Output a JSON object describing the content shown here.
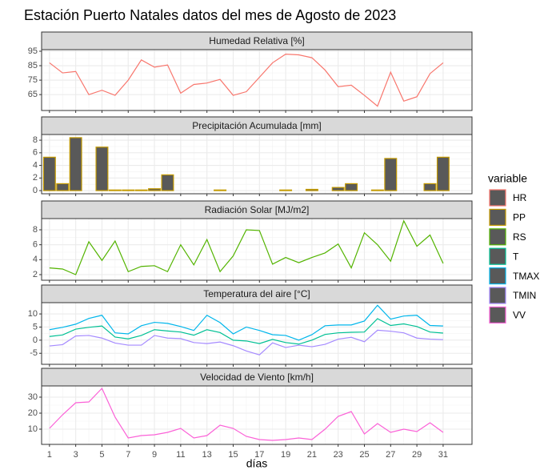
{
  "title": "Estación Puerto Natales datos del mes de Agosto de 2023",
  "x_axis": {
    "label": "días",
    "ticks": [
      1,
      3,
      5,
      7,
      9,
      11,
      13,
      15,
      17,
      19,
      21,
      23,
      25,
      27,
      29,
      31
    ],
    "xlim": [
      0.4,
      33.2
    ]
  },
  "legend": {
    "title": "variable",
    "key_fill": "#595959"
  },
  "chart_data": [
    {
      "type": "line",
      "title": "Humedad Relativa [%]",
      "ylim": [
        54,
        96.1
      ],
      "yticks": [
        95,
        85,
        75,
        65
      ],
      "x": [
        1,
        2,
        3,
        4,
        5,
        6,
        7,
        8,
        9,
        10,
        11,
        12,
        13,
        14,
        15,
        16,
        17,
        18,
        19,
        20,
        21,
        22,
        23,
        24,
        25,
        26,
        27,
        28,
        29,
        30,
        31
      ],
      "series": [
        {
          "name": "HR",
          "color": "#F8766D",
          "values": [
            87,
            80,
            81,
            65,
            68,
            64.5,
            75,
            89,
            84,
            85.5,
            66,
            72,
            73,
            75.5,
            64.5,
            67,
            77,
            87,
            93,
            92.5,
            90.5,
            82,
            70.5,
            71.5,
            64.5,
            57,
            80.5,
            60.5,
            63.5,
            79.5,
            87
          ]
        }
      ]
    },
    {
      "type": "bar",
      "title": "Precipitación Acumulada [mm]",
      "ylim": [
        -0.5,
        8.9
      ],
      "yticks": [
        8,
        6,
        4,
        2,
        0
      ],
      "x": [
        1,
        2,
        3,
        4,
        5,
        6,
        7,
        8,
        9,
        10,
        11,
        12,
        13,
        14,
        15,
        16,
        17,
        18,
        19,
        20,
        21,
        22,
        23,
        24,
        25,
        26,
        27,
        28,
        29,
        30,
        31
      ],
      "series": [
        {
          "name": "PP",
          "color": "#C49A00",
          "values": [
            5.3,
            1.1,
            8.4,
            0,
            6.9,
            0.1,
            0.1,
            0.1,
            0.3,
            2.5,
            0,
            0,
            0,
            0.1,
            0,
            0,
            0,
            0,
            0.1,
            0,
            0.2,
            0,
            0.5,
            1.1,
            0,
            0.1,
            5.1,
            0,
            0,
            1.1,
            5.3
          ]
        }
      ]
    },
    {
      "type": "line",
      "title": "Radiación Solar [MJ/m2]",
      "ylim": [
        1.25,
        9.5
      ],
      "yticks": [
        8,
        6,
        4,
        2
      ],
      "x": [
        1,
        2,
        3,
        4,
        5,
        6,
        7,
        8,
        9,
        10,
        11,
        12,
        13,
        14,
        15,
        16,
        17,
        18,
        19,
        20,
        21,
        22,
        23,
        24,
        25,
        26,
        27,
        28,
        29,
        30,
        31
      ],
      "series": [
        {
          "name": "RS",
          "color": "#53B400",
          "values": [
            2.9,
            2.75,
            2.0,
            6.4,
            3.9,
            6.5,
            2.4,
            3.1,
            3.2,
            2.4,
            6.0,
            3.3,
            6.7,
            2.4,
            4.5,
            8.0,
            7.9,
            3.4,
            4.3,
            3.6,
            4.3,
            4.9,
            6.1,
            2.9,
            7.6,
            6.0,
            3.8,
            9.2,
            5.8,
            7.3,
            3.5
          ]
        }
      ]
    },
    {
      "type": "line",
      "title": "Temperatura del aire [°C]",
      "ylim": [
        -9.2,
        14.3
      ],
      "yticks": [
        10,
        5,
        0,
        -5
      ],
      "x": [
        1,
        2,
        3,
        4,
        5,
        6,
        7,
        8,
        9,
        10,
        11,
        12,
        13,
        14,
        15,
        16,
        17,
        18,
        19,
        20,
        21,
        22,
        23,
        24,
        25,
        26,
        27,
        28,
        29,
        30,
        31
      ],
      "series": [
        {
          "name": "T",
          "color": "#00C094",
          "values": [
            1.4,
            2,
            4.2,
            4.9,
            5.4,
            1.2,
            0.5,
            1.8,
            4,
            3.5,
            3.1,
            1.9,
            4.0,
            2.9,
            0,
            -0.3,
            -1.3,
            0.3,
            -0.9,
            -1.5,
            0,
            2.2,
            2.8,
            3,
            3.1,
            8.2,
            5.6,
            6.2,
            5.2,
            3.1,
            2.7
          ]
        },
        {
          "name": "TMAX",
          "color": "#00B6EB",
          "values": [
            4.0,
            4.9,
            6.1,
            8.3,
            9.5,
            2.8,
            2.4,
            5.5,
            6.8,
            6.4,
            5.2,
            3.7,
            9.5,
            6.7,
            2.4,
            5,
            3.7,
            2.1,
            1.8,
            0,
            2.1,
            5.5,
            5.8,
            5.8,
            7.3,
            13.3,
            8,
            9.2,
            9.5,
            5.6,
            5.4
          ]
        },
        {
          "name": "TMIN",
          "color": "#A58AFF",
          "values": [
            -2.2,
            -1.7,
            1.6,
            1.8,
            0.8,
            -1.1,
            -1.9,
            -1.9,
            1.8,
            0.8,
            0.6,
            -0.9,
            -1.3,
            -0.7,
            -2.1,
            -4.1,
            -5.6,
            -1,
            -2.8,
            -1.9,
            -2.5,
            -1.6,
            0.4,
            1.1,
            -0.6,
            3.8,
            3.4,
            2.8,
            0.8,
            0.4,
            0.2
          ]
        }
      ]
    },
    {
      "type": "line",
      "title": "Velocidad de Viento [km/h]",
      "ylim": [
        0.5,
        37
      ],
      "yticks": [
        30,
        20,
        10
      ],
      "x": [
        1,
        2,
        3,
        4,
        5,
        6,
        7,
        8,
        9,
        10,
        11,
        12,
        13,
        14,
        15,
        16,
        17,
        18,
        19,
        20,
        21,
        22,
        23,
        24,
        25,
        26,
        27,
        28,
        29,
        30,
        31
      ],
      "series": [
        {
          "name": "VV",
          "color": "#FB61D7",
          "values": [
            10.5,
            19,
            26.5,
            27,
            35.5,
            17.5,
            4.5,
            6,
            6.5,
            8,
            10.5,
            4.5,
            6,
            12.5,
            10.5,
            5.5,
            3.5,
            3,
            3.5,
            4.5,
            3.5,
            10,
            18,
            21,
            7,
            13.5,
            8,
            10,
            8.5,
            14,
            8
          ]
        }
      ]
    }
  ]
}
